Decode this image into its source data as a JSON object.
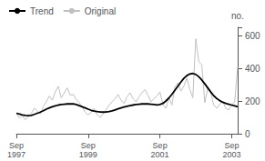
{
  "chart_data": {
    "type": "line",
    "ylabel": "no.",
    "categories": [
      "Sep\n1997",
      null,
      null,
      null,
      null,
      null,
      null,
      null,
      null,
      null,
      null,
      null,
      null,
      null,
      null,
      null,
      null,
      null,
      null,
      null,
      null,
      null,
      null,
      null,
      "Sep\n1999",
      null,
      null,
      null,
      null,
      null,
      null,
      null,
      null,
      null,
      null,
      null,
      null,
      null,
      null,
      null,
      null,
      null,
      null,
      null,
      null,
      null,
      null,
      null,
      "Sep\n2001",
      null,
      null,
      null,
      null,
      null,
      null,
      null,
      null,
      null,
      null,
      null,
      null,
      null,
      null,
      null,
      null,
      null,
      null,
      null,
      null,
      null,
      null,
      null,
      "Sep\n2003",
      null,
      null
    ],
    "series": [
      {
        "name": "Trend",
        "color": "#000000",
        "values": [
          125,
          120,
          115,
          112,
          110,
          112,
          118,
          125,
          132,
          140,
          150,
          158,
          165,
          170,
          175,
          178,
          180,
          182,
          183,
          182,
          178,
          172,
          165,
          158,
          150,
          143,
          138,
          135,
          133,
          132,
          133,
          136,
          140,
          145,
          152,
          158,
          163,
          168,
          172,
          175,
          178,
          180,
          182,
          183,
          182,
          180,
          178,
          176,
          178,
          185,
          200,
          218,
          240,
          265,
          290,
          315,
          338,
          355,
          365,
          368,
          362,
          348,
          328,
          305,
          280,
          255,
          232,
          215,
          202,
          192,
          185,
          180,
          175,
          170,
          165
        ]
      },
      {
        "name": "Original",
        "color": "#c0c0c0",
        "values": [
          128,
          95,
          110,
          85,
          105,
          125,
          155,
          140,
          120,
          165,
          195,
          230,
          205,
          255,
          290,
          220,
          250,
          280,
          235,
          240,
          210,
          190,
          165,
          130,
          115,
          130,
          155,
          115,
          100,
          120,
          145,
          175,
          195,
          215,
          240,
          205,
          185,
          225,
          250,
          215,
          195,
          225,
          250,
          270,
          235,
          195,
          215,
          230,
          255,
          180,
          155,
          220,
          175,
          285,
          310,
          260,
          290,
          340,
          270,
          220,
          580,
          440,
          420,
          190,
          280,
          250,
          175,
          155,
          180,
          200,
          155,
          145,
          175,
          195,
          410
        ]
      }
    ],
    "ylim": [
      0,
      650
    ],
    "yticks": [
      0,
      200,
      400,
      600
    ],
    "grid": false,
    "legend": "upper left"
  }
}
